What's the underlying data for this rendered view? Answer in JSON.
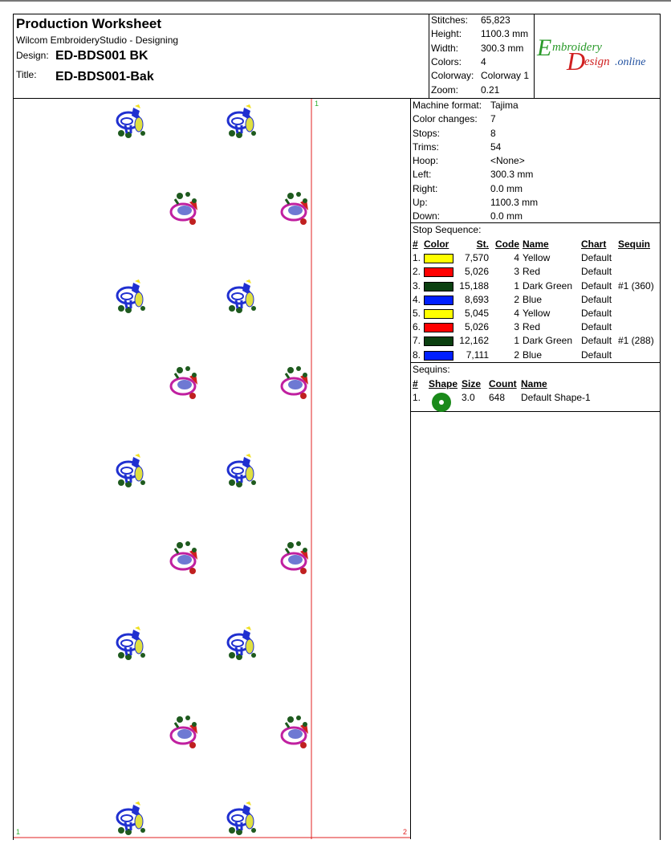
{
  "header": {
    "title": "Production Worksheet",
    "subtitle": "Wilcom EmbroideryStudio - Designing",
    "design_label": "Design:",
    "design_value": "ED-BDS001 BK",
    "title_label": "Title:",
    "title_value": "ED-BDS001-Bak"
  },
  "stats": [
    {
      "label": "Stitches:",
      "value": "65,823"
    },
    {
      "label": "Height:",
      "value": "1100.3 mm"
    },
    {
      "label": "Width:",
      "value": "300.3 mm"
    },
    {
      "label": "Colors:",
      "value": "4"
    },
    {
      "label": "Colorway:",
      "value": "Colorway 1"
    },
    {
      "label": "Zoom:",
      "value": "0.21"
    }
  ],
  "logo": {
    "line1": "Embroidery",
    "line2": "Design",
    "line3": ".online"
  },
  "machine": [
    {
      "label": "Machine format:",
      "value": "Tajima"
    },
    {
      "label": "Color changes:",
      "value": "7"
    },
    {
      "label": "Stops:",
      "value": "8"
    },
    {
      "label": "Trims:",
      "value": "54"
    },
    {
      "label": "Hoop:",
      "value": "<None>"
    },
    {
      "label": "Left:",
      "value": "300.3 mm"
    },
    {
      "label": "Right:",
      "value": "0.0 mm"
    },
    {
      "label": "Up:",
      "value": "1100.3 mm"
    },
    {
      "label": "Down:",
      "value": "0.0 mm"
    }
  ],
  "stop_sequence": {
    "title": "Stop Sequence:",
    "headers": {
      "num": "#",
      "color": "Color",
      "st": "St.",
      "code": "Code",
      "name": "Name",
      "chart": "Chart",
      "sequin": "Sequin"
    },
    "rows": [
      {
        "num": "1.",
        "color": "#ffff00",
        "st": "7,570",
        "code": "4",
        "name": "Yellow",
        "chart": "Default",
        "sequin": ""
      },
      {
        "num": "2.",
        "color": "#ff0000",
        "st": "5,026",
        "code": "3",
        "name": "Red",
        "chart": "Default",
        "sequin": ""
      },
      {
        "num": "3.",
        "color": "#0b4010",
        "st": "15,188",
        "code": "1",
        "name": "Dark Green",
        "chart": "Default",
        "sequin": "#1 (360)"
      },
      {
        "num": "4.",
        "color": "#0020ff",
        "st": "8,693",
        "code": "2",
        "name": "Blue",
        "chart": "Default",
        "sequin": ""
      },
      {
        "num": "5.",
        "color": "#ffff00",
        "st": "5,045",
        "code": "4",
        "name": "Yellow",
        "chart": "Default",
        "sequin": ""
      },
      {
        "num": "6.",
        "color": "#ff0000",
        "st": "5,026",
        "code": "3",
        "name": "Red",
        "chart": "Default",
        "sequin": ""
      },
      {
        "num": "7.",
        "color": "#0b4010",
        "st": "12,162",
        "code": "1",
        "name": "Dark Green",
        "chart": "Default",
        "sequin": "#1 (288)"
      },
      {
        "num": "8.",
        "color": "#0020ff",
        "st": "7,111",
        "code": "2",
        "name": "Blue",
        "chart": "Default",
        "sequin": ""
      }
    ]
  },
  "sequins": {
    "title": "Sequins:",
    "headers": {
      "num": "#",
      "shape": "Shape",
      "size": "Size",
      "count": "Count",
      "name": "Name"
    },
    "rows": [
      {
        "num": "1.",
        "shape_color": "#1a8a1a",
        "size": "3.0",
        "count": "648",
        "name": "Default Shape-1"
      }
    ]
  },
  "canvas_markers": {
    "start": "1",
    "end": "2"
  }
}
